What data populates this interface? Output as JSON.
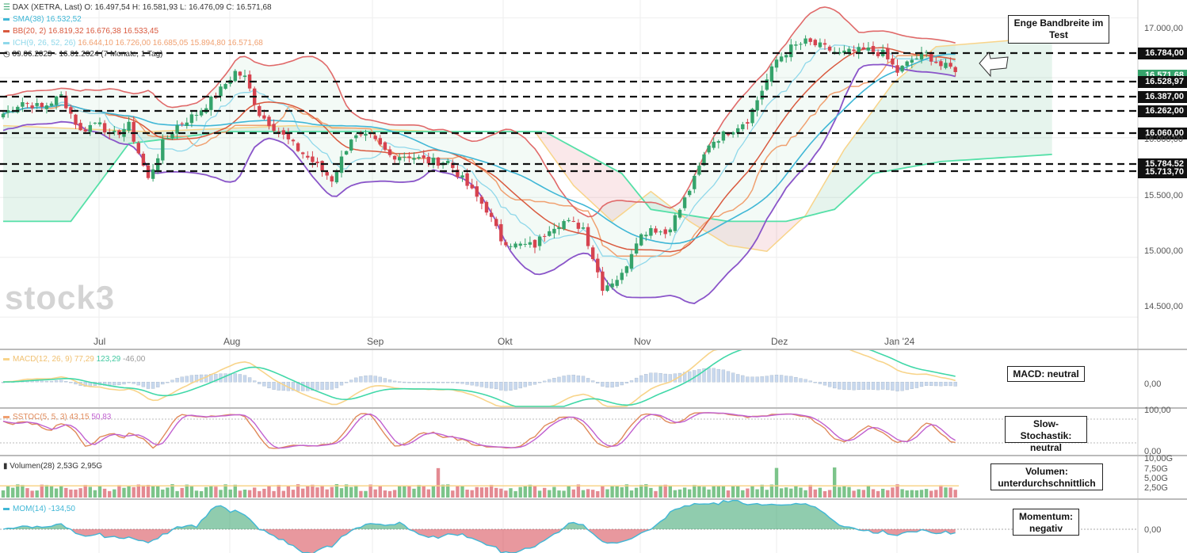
{
  "header": {
    "line1": "DAX (XETRA, Last)  O: 16.497,54  H: 16.581,93  L: 16.476,09  C: 16.571,68",
    "sma_name": "SMA(38)",
    "sma_val": "16.532,52",
    "bb_name": "BB(20, 2)",
    "bb_vals": "16.819,32  16.676,38  16.533,45",
    "ichi_name": "ICH(9, 26, 52, 26)",
    "ichi_vals": "16.644,10  16.726,00  16.685,05  15.894,80  16.571,68",
    "range": "09.06.2023 - 16.01.2024   (7 Monate, 1 Tag)"
  },
  "watermark": "stock3",
  "colors": {
    "up": "#35a36b",
    "down": "#d6434f",
    "sma": "#40b7d6",
    "bb_mid": "#d9593e",
    "bb_outer": "#e06a6a",
    "bb_lower": "#8a55c9",
    "tenkan": "#8fd8ea",
    "kijun": "#f0a070",
    "spanA": "#f8d48a",
    "spanB": "#55e0a8"
  },
  "xaxis": [
    "Jul",
    "Aug",
    "Sep",
    "Okt",
    "Nov",
    "Dez",
    "Jan '24"
  ],
  "yaxis": [
    "17.000,00",
    "16.500,00",
    "16.000,00",
    "15.500,00",
    "15.000,00",
    "14.500,00"
  ],
  "levels": [
    "16.784,00",
    "16.528,97",
    "16.387,00",
    "16.262,00",
    "16.060,00",
    "15.784,52",
    "15.713,70"
  ],
  "price_tag": "16.571,68",
  "callouts": {
    "band": "Enge Bandbreite im Test",
    "macd": "MACD: neutral",
    "stoch": "Slow-Stochastik: neutral",
    "vol": "Volumen: unterdurchschnittlich",
    "mom": "Momentum: negativ"
  },
  "macd": {
    "label": "MACD(12, 26, 9)",
    "v1": "77,29",
    "v2": "123,29",
    "v3": "-46,00",
    "axis": "0,00"
  },
  "stoch": {
    "label": "SSTOC(5, 5, 3)",
    "v1": "43,15",
    "v2": "50,83",
    "axis_top": "100,00",
    "axis_bot": "0,00"
  },
  "volume": {
    "label": "Volumen(28)",
    "v1": "2,53G",
    "v2": "2,95G",
    "axis": [
      "10,00G",
      "7,50G",
      "5,00G",
      "2,50G"
    ]
  },
  "mom": {
    "label": "MOM(14)",
    "v1": "-134,50",
    "axis": "0,00"
  },
  "chart_data": {
    "type": "candlestick",
    "period": "09.06.2023 - 16.01.2024",
    "ylim": [
      14250,
      17150
    ],
    "close_anchors": [
      [
        0,
        16200
      ],
      [
        4,
        16300
      ],
      [
        8,
        16250
      ],
      [
        12,
        16350
      ],
      [
        16,
        16050
      ],
      [
        20,
        16150
      ],
      [
        22,
        16000
      ],
      [
        26,
        16100
      ],
      [
        30,
        15650
      ],
      [
        33,
        15950
      ],
      [
        36,
        16100
      ],
      [
        40,
        16200
      ],
      [
        44,
        16350
      ],
      [
        48,
        16550
      ],
      [
        50,
        16500
      ],
      [
        53,
        16200
      ],
      [
        57,
        16050
      ],
      [
        61,
        15900
      ],
      [
        64,
        15800
      ],
      [
        68,
        15650
      ],
      [
        72,
        16000
      ],
      [
        76,
        16000
      ],
      [
        80,
        15850
      ],
      [
        84,
        15850
      ],
      [
        88,
        15800
      ],
      [
        92,
        15800
      ],
      [
        96,
        15600
      ],
      [
        100,
        15400
      ],
      [
        103,
        15150
      ],
      [
        106,
        15100
      ],
      [
        110,
        15100
      ],
      [
        113,
        15250
      ],
      [
        116,
        15300
      ],
      [
        120,
        15250
      ],
      [
        124,
        14750
      ],
      [
        128,
        14850
      ],
      [
        131,
        15150
      ],
      [
        134,
        15250
      ],
      [
        137,
        15200
      ],
      [
        140,
        15400
      ],
      [
        143,
        15650
      ],
      [
        146,
        15950
      ],
      [
        150,
        16050
      ],
      [
        154,
        16150
      ],
      [
        157,
        16400
      ],
      [
        160,
        16650
      ],
      [
        163,
        16750
      ],
      [
        166,
        16800
      ],
      [
        170,
        16750
      ],
      [
        173,
        16700
      ],
      [
        176,
        16720
      ],
      [
        179,
        16730
      ],
      [
        182,
        16700
      ],
      [
        185,
        16550
      ],
      [
        188,
        16650
      ],
      [
        191,
        16700
      ],
      [
        194,
        16600
      ],
      [
        197,
        16572
      ]
    ],
    "ichimoku_span_a": [
      [
        0,
        16100
      ],
      [
        30,
        16050
      ],
      [
        60,
        16100
      ],
      [
        90,
        16050
      ],
      [
        110,
        16050
      ],
      [
        118,
        15600
      ],
      [
        126,
        15300
      ],
      [
        134,
        15550
      ],
      [
        142,
        15300
      ],
      [
        150,
        15100
      ],
      [
        158,
        15050
      ],
      [
        166,
        15350
      ],
      [
        174,
        15900
      ],
      [
        184,
        16450
      ],
      [
        193,
        16760
      ]
    ],
    "ichimoku_span_b": [
      [
        0,
        15300
      ],
      [
        14,
        15300
      ],
      [
        26,
        15950
      ],
      [
        46,
        16050
      ],
      [
        80,
        16050
      ],
      [
        112,
        16050
      ],
      [
        128,
        15700
      ],
      [
        134,
        15400
      ],
      [
        150,
        15300
      ],
      [
        162,
        15300
      ],
      [
        172,
        15400
      ],
      [
        180,
        15700
      ],
      [
        194,
        15800
      ]
    ],
    "volume_scale_max": 10,
    "macd_range": [
      -150,
      200
    ],
    "mom_range": [
      -500,
      900
    ]
  }
}
